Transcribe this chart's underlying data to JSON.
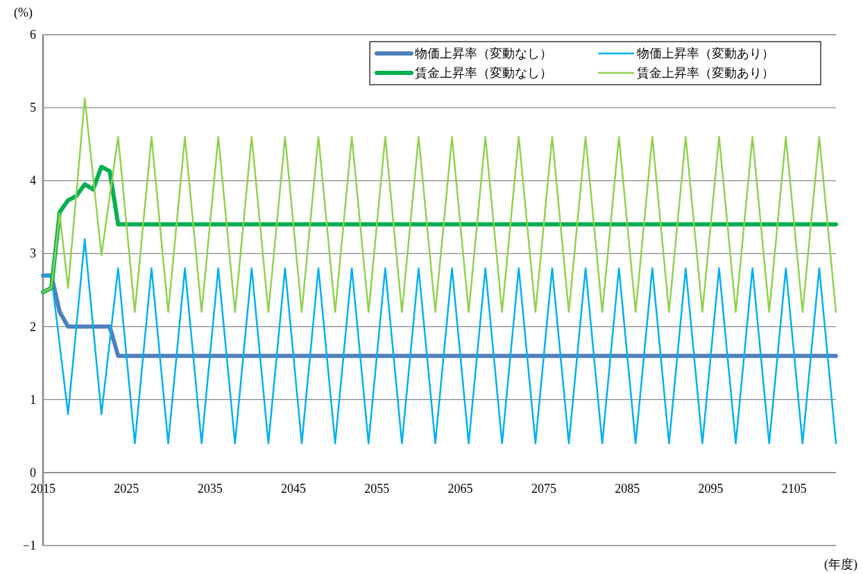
{
  "chart_data": {
    "type": "line",
    "ylabel": "(%)",
    "xlabel": "(年度)",
    "xlim": [
      2015,
      2110
    ],
    "xticks": [
      2015,
      2025,
      2035,
      2045,
      2055,
      2065,
      2075,
      2085,
      2095,
      2105
    ],
    "ylim": [
      -1,
      6
    ],
    "yticks": [
      {
        "value": -1,
        "label": "−1"
      },
      0,
      1,
      2,
      3,
      4,
      5,
      6
    ],
    "grid": "y",
    "legend": "top right",
    "marker": "none",
    "series": [
      {
        "name": "物価上昇率（変動なし）",
        "color": "#4f81bd",
        "x": [
          2015,
          2016,
          2017,
          2018,
          2019,
          2020,
          2021,
          2022,
          2023,
          2024,
          2110
        ],
        "values": [
          2.7,
          2.7,
          2.2,
          2.0,
          2.0,
          2.0,
          2.0,
          2.0,
          2.0,
          1.6,
          1.6
        ]
      },
      {
        "name": "物価上昇率（変動あり）",
        "color": "#00b0f0",
        "x": [
          2015,
          2016,
          2018,
          2020,
          2022,
          2024,
          2026,
          2028,
          2030,
          2032,
          2034,
          2036,
          2038,
          2040,
          2042,
          2044,
          2046,
          2048,
          2050,
          2052,
          2054,
          2056,
          2058,
          2060,
          2062,
          2064,
          2066,
          2068,
          2070,
          2072,
          2074,
          2076,
          2078,
          2080,
          2082,
          2084,
          2086,
          2088,
          2090,
          2092,
          2094,
          2096,
          2098,
          2100,
          2102,
          2104,
          2106,
          2108,
          2110
        ],
        "values": [
          2.7,
          2.7,
          0.8,
          3.2,
          0.8,
          2.8,
          0.4,
          2.8,
          0.4,
          2.8,
          0.4,
          2.8,
          0.4,
          2.8,
          0.4,
          2.8,
          0.4,
          2.8,
          0.4,
          2.8,
          0.4,
          2.8,
          0.4,
          2.8,
          0.4,
          2.8,
          0.4,
          2.8,
          0.4,
          2.8,
          0.4,
          2.8,
          0.4,
          2.8,
          0.4,
          2.8,
          0.4,
          2.8,
          0.4,
          2.8,
          0.4,
          2.8,
          0.4,
          2.8,
          0.4,
          2.8,
          0.4,
          2.8,
          0.4
        ]
      },
      {
        "name": "賃金上昇率（変動なし）",
        "color": "#00b050",
        "x": [
          2015,
          2016,
          2017,
          2018,
          2019,
          2020,
          2021,
          2022,
          2023,
          2024,
          2110
        ],
        "values": [
          2.47,
          2.53,
          3.57,
          3.73,
          3.79,
          3.95,
          3.88,
          4.19,
          4.13,
          3.4,
          3.4
        ]
      },
      {
        "name": "賃金上昇率（変動あり）",
        "color": "#92d050",
        "x": [
          2015,
          2016,
          2017,
          2018,
          2020,
          2022,
          2024,
          2026,
          2028,
          2030,
          2032,
          2034,
          2036,
          2038,
          2040,
          2042,
          2044,
          2046,
          2048,
          2050,
          2052,
          2054,
          2056,
          2058,
          2060,
          2062,
          2064,
          2066,
          2068,
          2070,
          2072,
          2074,
          2076,
          2078,
          2080,
          2082,
          2084,
          2086,
          2088,
          2090,
          2092,
          2094,
          2096,
          2098,
          2100,
          2102,
          2104,
          2106,
          2108,
          2110
        ],
        "values": [
          2.47,
          2.53,
          3.55,
          2.53,
          5.13,
          2.98,
          4.6,
          2.2,
          4.6,
          2.2,
          4.6,
          2.2,
          4.6,
          2.2,
          4.6,
          2.2,
          4.6,
          2.2,
          4.6,
          2.2,
          4.6,
          2.2,
          4.6,
          2.2,
          4.6,
          2.2,
          4.6,
          2.2,
          4.6,
          2.2,
          4.6,
          2.2,
          4.6,
          2.2,
          4.6,
          2.2,
          4.6,
          2.2,
          4.6,
          2.2,
          4.6,
          2.2,
          4.6,
          2.2,
          4.6,
          2.2,
          4.6,
          2.2,
          4.6,
          2.2
        ]
      }
    ]
  }
}
